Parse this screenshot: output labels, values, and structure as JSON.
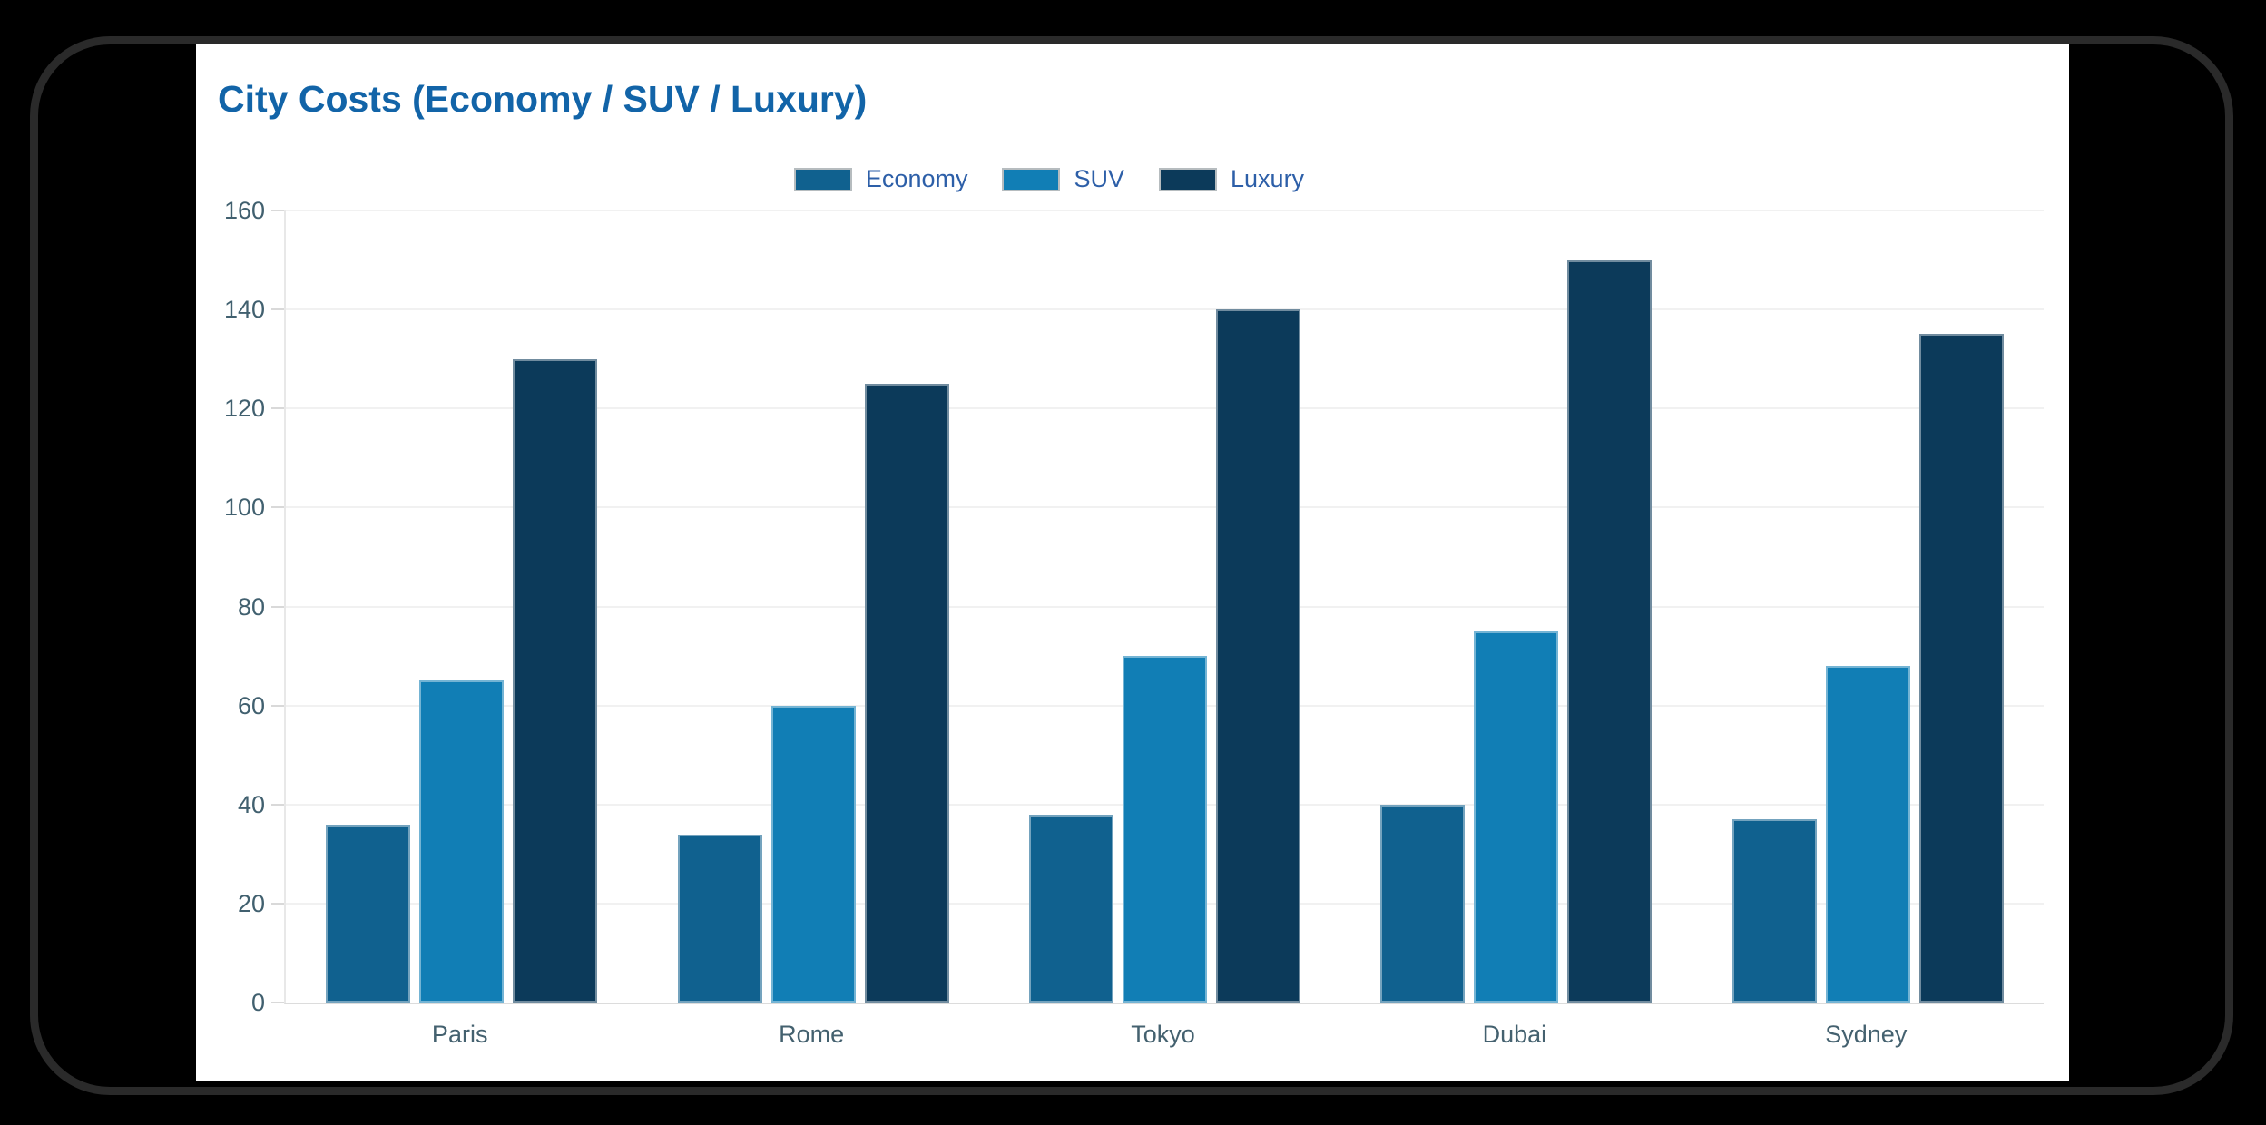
{
  "window": {
    "background_color": "#000000",
    "frame_outline_color": "#2a2a2a",
    "card_color": "#ffffff"
  },
  "chart_data": {
    "type": "bar",
    "title": "City Costs (Economy / SUV / Luxury)",
    "title_color": "#1264a8",
    "categories": [
      "Paris",
      "Rome",
      "Tokyo",
      "Dubai",
      "Sydney"
    ],
    "series": [
      {
        "name": "Economy",
        "color": "#10618f",
        "values": [
          36,
          34,
          38,
          40,
          37
        ]
      },
      {
        "name": "SUV",
        "color": "#117eb5",
        "values": [
          65,
          60,
          70,
          75,
          68
        ]
      },
      {
        "name": "Luxury",
        "color": "#0c3a5a",
        "values": [
          130,
          125,
          140,
          150,
          135
        ]
      }
    ],
    "xlabel": "",
    "ylabel": "",
    "ylim": [
      0,
      160
    ],
    "yticks": [
      0,
      20,
      40,
      60,
      80,
      100,
      120,
      140,
      160
    ],
    "grid": "horizontal",
    "legend_position": "top-center",
    "legend_text_color": "#2d5fa8",
    "tick_text_color": "#44616f",
    "gridline_color": "#f1f1f1"
  }
}
